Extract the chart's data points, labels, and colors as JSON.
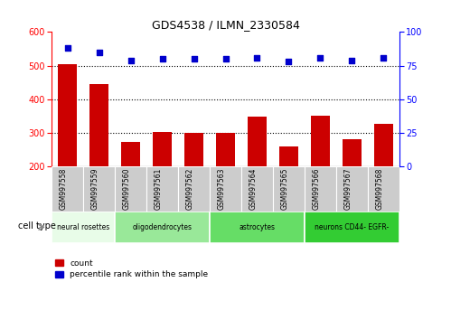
{
  "title": "GDS4538 / ILMN_2330584",
  "samples": [
    "GSM997558",
    "GSM997559",
    "GSM997560",
    "GSM997561",
    "GSM997562",
    "GSM997563",
    "GSM997564",
    "GSM997565",
    "GSM997566",
    "GSM997567",
    "GSM997568"
  ],
  "counts": [
    503,
    445,
    272,
    302,
    300,
    301,
    348,
    260,
    352,
    281,
    328
  ],
  "percentiles": [
    88,
    85,
    79,
    80,
    80,
    80,
    81,
    78,
    81,
    79,
    81
  ],
  "cell_types": [
    {
      "label": "neural rosettes",
      "start": 0,
      "end": 2,
      "color": "#e8fce8"
    },
    {
      "label": "oligodendrocytes",
      "start": 2,
      "end": 5,
      "color": "#99e899"
    },
    {
      "label": "astrocytes",
      "start": 5,
      "end": 8,
      "color": "#66dd66"
    },
    {
      "label": "neurons CD44- EGFR-",
      "start": 8,
      "end": 11,
      "color": "#33cc33"
    }
  ],
  "ylim_left": [
    200,
    600
  ],
  "ylim_right": [
    0,
    100
  ],
  "yticks_left": [
    200,
    300,
    400,
    500,
    600
  ],
  "yticks_right": [
    0,
    25,
    50,
    75,
    100
  ],
  "bar_color": "#cc0000",
  "scatter_color": "#0000cc",
  "bar_width": 0.6,
  "legend_count_label": "count",
  "legend_pct_label": "percentile rank within the sample",
  "cell_type_label": "cell type",
  "dotted_grid_values": [
    300,
    400,
    500
  ],
  "sample_box_color": "#cccccc",
  "background_color": "#ffffff"
}
